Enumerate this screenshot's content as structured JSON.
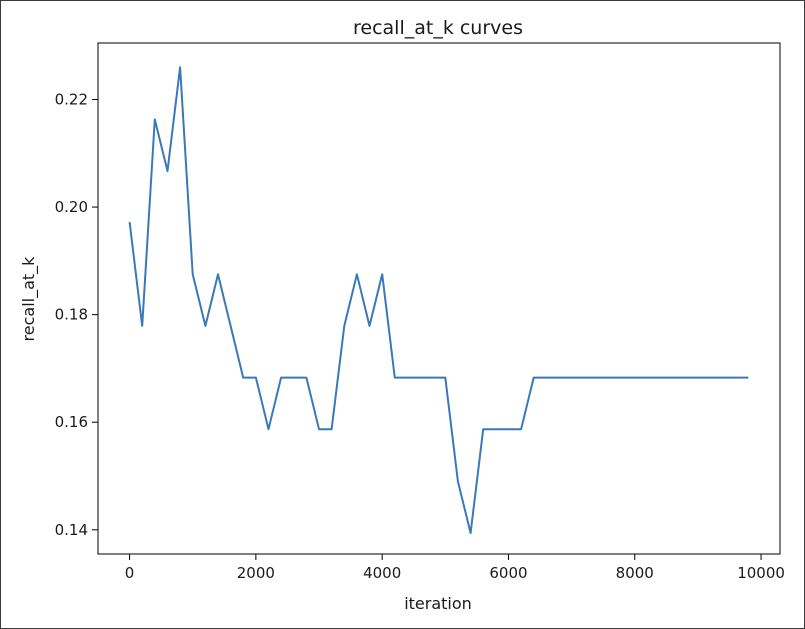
{
  "chart_data": {
    "type": "line",
    "title": "recall_at_k curves",
    "xlabel": "iteration",
    "ylabel": "recall_at_k",
    "xlim": [
      -500,
      10300
    ],
    "ylim": [
      0.1355,
      0.2305
    ],
    "xticks": [
      0,
      2000,
      4000,
      6000,
      8000,
      10000
    ],
    "xtick_labels": [
      "0",
      "2000",
      "4000",
      "6000",
      "8000",
      "10000"
    ],
    "yticks": [
      0.14,
      0.16,
      0.18,
      0.2,
      0.22
    ],
    "ytick_labels": [
      "0.14",
      "0.16",
      "0.18",
      "0.20",
      "0.22"
    ],
    "grid": false,
    "series_color": "#3a78b8",
    "series": [
      {
        "x": [
          0,
          200,
          400,
          600,
          800,
          1000,
          1200,
          1400,
          1600,
          1800,
          2000,
          2200,
          2400,
          2600,
          2800,
          3000,
          3200,
          3400,
          3600,
          3800,
          4000,
          4200,
          4400,
          4600,
          4800,
          5000,
          5200,
          5400,
          5600,
          5800,
          6000,
          6200,
          6400,
          6600,
          6800,
          7000,
          7200,
          7400,
          7600,
          7800,
          8000,
          8200,
          8400,
          8600,
          8800,
          9000,
          9200,
          9400,
          9600,
          9800
        ],
        "y": [
          0.1972,
          0.1779,
          0.2163,
          0.2067,
          0.226,
          0.1875,
          0.1779,
          0.1875,
          0.1779,
          0.1683,
          0.1683,
          0.1587,
          0.1683,
          0.1683,
          0.1683,
          0.1587,
          0.1587,
          0.1779,
          0.1875,
          0.1779,
          0.1875,
          0.1683,
          0.1683,
          0.1683,
          0.1683,
          0.1683,
          0.149,
          0.1394,
          0.1587,
          0.1587,
          0.1587,
          0.1587,
          0.1683,
          0.1683,
          0.1683,
          0.1683,
          0.1683,
          0.1683,
          0.1683,
          0.1683,
          0.1683,
          0.1683,
          0.1683,
          0.1683,
          0.1683,
          0.1683,
          0.1683,
          0.1683,
          0.1683,
          0.1683
        ]
      }
    ]
  }
}
